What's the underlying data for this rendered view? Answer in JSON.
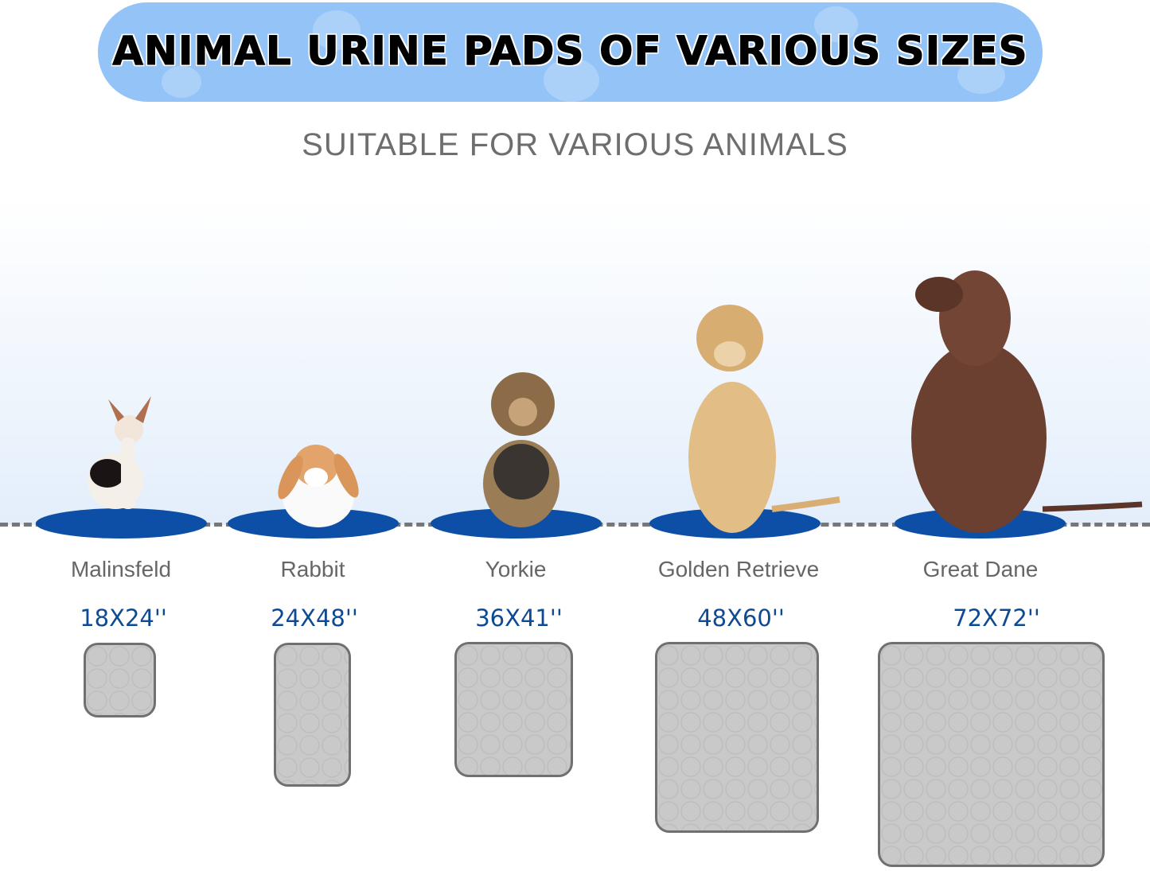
{
  "banner": {
    "title": "ANIMAL URINE PADS OF VARIOUS SIZES",
    "color": "#94c4f7"
  },
  "subtitle": "SUITABLE FOR VARIOUS ANIMALS",
  "accent_color": "#0d4fa6",
  "animals": [
    {
      "name": "Malinsfeld",
      "size": "18X24''"
    },
    {
      "name": "Rabbit",
      "size": "24X48''"
    },
    {
      "name": "Yorkie",
      "size": "36X41''"
    },
    {
      "name": "Golden Retrieve",
      "size": "48X60''"
    },
    {
      "name": "Great Dane",
      "size": "72X72''"
    }
  ]
}
